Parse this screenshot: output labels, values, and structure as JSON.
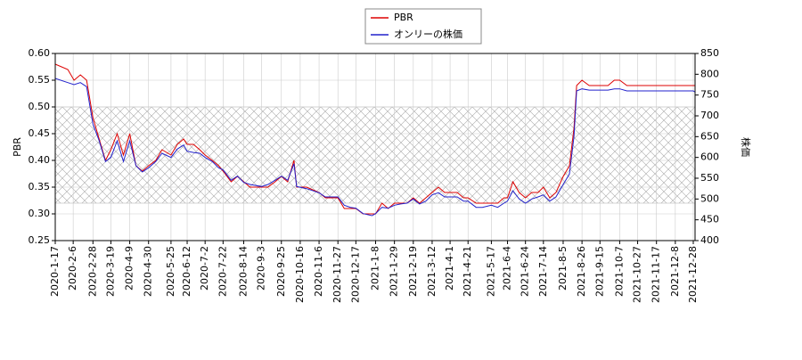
{
  "chart_data": {
    "type": "line",
    "x": [
      "2020-1-17",
      "2020-1-31",
      "2020-2-7",
      "2020-2-14",
      "2020-2-21",
      "2020-2-28",
      "2020-3-6",
      "2020-3-13",
      "2020-3-19",
      "2020-3-26",
      "2020-4-2",
      "2020-4-9",
      "2020-4-16",
      "2020-4-23",
      "2020-4-30",
      "2020-5-8",
      "2020-5-15",
      "2020-5-25",
      "2020-6-1",
      "2020-6-8",
      "2020-6-12",
      "2020-6-19",
      "2020-6-26",
      "2020-7-2",
      "2020-7-10",
      "2020-7-17",
      "2020-7-22",
      "2020-7-31",
      "2020-8-7",
      "2020-8-14",
      "2020-8-21",
      "2020-9-3",
      "2020-9-10",
      "2020-9-18",
      "2020-9-25",
      "2020-10-2",
      "2020-10-9",
      "2020-10-12",
      "2020-10-23",
      "2020-11-6",
      "2020-11-13",
      "2020-11-20",
      "2020-11-27",
      "2020-12-4",
      "2020-12-11",
      "2020-12-17",
      "2020-12-25",
      "2021-1-4",
      "2021-1-8",
      "2021-1-15",
      "2021-1-22",
      "2021-1-29",
      "2021-2-5",
      "2021-2-12",
      "2021-2-19",
      "2021-2-26",
      "2021-3-5",
      "2021-3-12",
      "2021-3-19",
      "2021-3-26",
      "2021-4-1",
      "2021-4-9",
      "2021-4-16",
      "2021-4-21",
      "2021-4-30",
      "2021-5-7",
      "2021-5-17",
      "2021-5-24",
      "2021-5-31",
      "2021-6-4",
      "2021-6-10",
      "2021-6-17",
      "2021-6-24",
      "2021-7-1",
      "2021-7-8",
      "2021-7-14",
      "2021-7-21",
      "2021-7-28",
      "2021-8-5",
      "2021-8-12",
      "2021-8-17",
      "2021-8-20",
      "2021-8-26",
      "2021-9-3",
      "2021-9-15",
      "2021-9-24",
      "2021-10-1",
      "2021-10-7",
      "2021-10-15",
      "2021-10-27",
      "2021-11-5",
      "2021-11-17",
      "2021-11-26",
      "2021-12-8",
      "2021-12-17",
      "2021-12-28",
      "2021-12-30"
    ],
    "series": [
      {
        "name": "PBR",
        "color": "#dd0000",
        "values": [
          0.58,
          0.57,
          0.55,
          0.56,
          0.55,
          0.48,
          0.44,
          0.4,
          0.42,
          0.45,
          0.41,
          0.45,
          0.39,
          0.38,
          0.39,
          0.4,
          0.42,
          0.41,
          0.43,
          0.44,
          0.43,
          0.43,
          0.42,
          0.41,
          0.4,
          0.39,
          0.38,
          0.36,
          0.37,
          0.36,
          0.35,
          0.35,
          0.35,
          0.36,
          0.37,
          0.36,
          0.4,
          0.35,
          0.35,
          0.34,
          0.33,
          0.33,
          0.33,
          0.31,
          0.31,
          0.31,
          0.3,
          0.3,
          0.3,
          0.32,
          0.31,
          0.32,
          0.32,
          0.32,
          0.33,
          0.32,
          0.33,
          0.34,
          0.35,
          0.34,
          0.34,
          0.34,
          0.33,
          0.33,
          0.32,
          0.32,
          0.32,
          0.32,
          0.33,
          0.33,
          0.36,
          0.34,
          0.33,
          0.34,
          0.34,
          0.35,
          0.33,
          0.34,
          0.37,
          0.39,
          0.46,
          0.54,
          0.55,
          0.54,
          0.54,
          0.54,
          0.55,
          0.55,
          0.54,
          0.54,
          0.54,
          0.54,
          0.54,
          0.54,
          0.54,
          0.54,
          0.54
        ]
      },
      {
        "name": "オンリーの株価",
        "color": "#2222cc",
        "axis": "y2",
        "values": [
          790,
          780,
          775,
          780,
          770,
          680,
          640,
          590,
          600,
          640,
          590,
          640,
          580,
          565,
          575,
          590,
          610,
          600,
          620,
          630,
          615,
          612,
          610,
          600,
          590,
          575,
          570,
          545,
          555,
          540,
          535,
          530,
          535,
          545,
          555,
          545,
          585,
          530,
          525,
          515,
          505,
          505,
          505,
          485,
          480,
          478,
          465,
          460,
          465,
          480,
          478,
          485,
          488,
          490,
          500,
          488,
          495,
          510,
          515,
          505,
          505,
          505,
          495,
          495,
          480,
          480,
          485,
          480,
          490,
          495,
          520,
          500,
          490,
          500,
          505,
          510,
          495,
          505,
          535,
          560,
          650,
          760,
          765,
          762,
          762,
          762,
          765,
          765,
          760,
          760,
          760,
          760,
          760,
          760,
          760,
          760,
          757
        ]
      }
    ],
    "xlim": [
      "2020-1-17",
      "2021-12-30"
    ],
    "xticks": [
      "2020-1-17",
      "2020-2-6",
      "2020-2-28",
      "2020-3-19",
      "2020-4-9",
      "2020-4-30",
      "2020-5-25",
      "2020-6-12",
      "2020-7-2",
      "2020-7-22",
      "2020-8-14",
      "2020-9-3",
      "2020-9-25",
      "2020-10-16",
      "2020-11-6",
      "2020-11-27",
      "2020-12-17",
      "2021-1-8",
      "2021-1-29",
      "2021-2-19",
      "2021-3-12",
      "2021-4-1",
      "2021-4-21",
      "2021-5-17",
      "2021-6-4",
      "2021-6-24",
      "2021-7-14",
      "2021-8-5",
      "2021-8-26",
      "2021-9-15",
      "2021-10-7",
      "2021-10-27",
      "2021-11-17",
      "2021-12-8",
      "2021-12-28"
    ],
    "ylabel": "PBR",
    "ylim": [
      0.25,
      0.6
    ],
    "yticks": [
      0.25,
      {
        "value": 0.3,
        "label": "0.30"
      },
      0.35,
      {
        "value": 0.4,
        "label": "0.40"
      },
      0.45,
      {
        "value": 0.5,
        "label": "0.50"
      },
      0.55,
      {
        "value": 0.6,
        "label": "0.60"
      }
    ],
    "y2label": "株価",
    "y2lim": [
      400,
      850
    ],
    "y2ticks": [
      400,
      450,
      500,
      550,
      600,
      650,
      700,
      750,
      800,
      850
    ],
    "band": [
      0.32,
      0.5
    ],
    "grid": true,
    "legend": "top"
  }
}
